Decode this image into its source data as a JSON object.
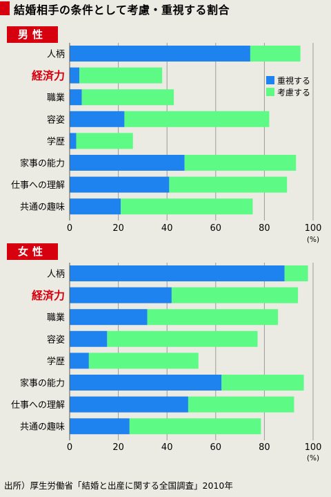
{
  "title": "結婚相手の条件として考慮・重視する割合",
  "source": "出所）厚生労働省「結婚と出産に関する全国調査」2010年",
  "colors": {
    "juushi": "#1e82ef",
    "kouryo": "#5dfb85",
    "highlight_label": "#d7000f",
    "panel_label_bg": "#d7000f",
    "grid": "#9a9a9a"
  },
  "chart_data": [
    {
      "type": "bar",
      "orientation": "horizontal",
      "stacked": true,
      "panel_label": "男性",
      "categories": [
        "人柄",
        "経済力",
        "職業",
        "容姿",
        "学歴",
        "家事の能力",
        "仕事への理解",
        "共通の趣味"
      ],
      "highlight_category": "経済力",
      "series": [
        {
          "name": "重視する",
          "values": [
            74.2,
            4.0,
            5.0,
            22.5,
            2.7,
            47.2,
            40.9,
            21.0
          ]
        },
        {
          "name": "考慮する",
          "values": [
            20.6,
            34.0,
            37.8,
            59.5,
            23.3,
            45.8,
            48.4,
            54.2
          ]
        }
      ],
      "xlim": [
        0,
        100
      ],
      "xticks": [
        "0",
        "20",
        "40",
        "60",
        "80",
        "100"
      ],
      "unit_label": "(%)",
      "grid": true,
      "legend": "top-right"
    },
    {
      "type": "bar",
      "orientation": "horizontal",
      "stacked": true,
      "panel_label": "女性",
      "categories": [
        "人柄",
        "経済力",
        "職業",
        "容姿",
        "学歴",
        "家事の能力",
        "仕事への理解",
        "共通の趣味"
      ],
      "highlight_category": "経済力",
      "series": [
        {
          "name": "重視する",
          "values": [
            88.3,
            41.9,
            31.9,
            15.4,
            7.9,
            62.4,
            48.7,
            24.6
          ]
        },
        {
          "name": "考慮する",
          "values": [
            9.6,
            51.9,
            53.7,
            61.8,
            45.0,
            33.8,
            43.5,
            54.0
          ]
        }
      ],
      "xlim": [
        0,
        100
      ],
      "xticks": [
        "0",
        "20",
        "40",
        "60",
        "80",
        "100"
      ],
      "unit_label": "(%)",
      "grid": true
    }
  ]
}
